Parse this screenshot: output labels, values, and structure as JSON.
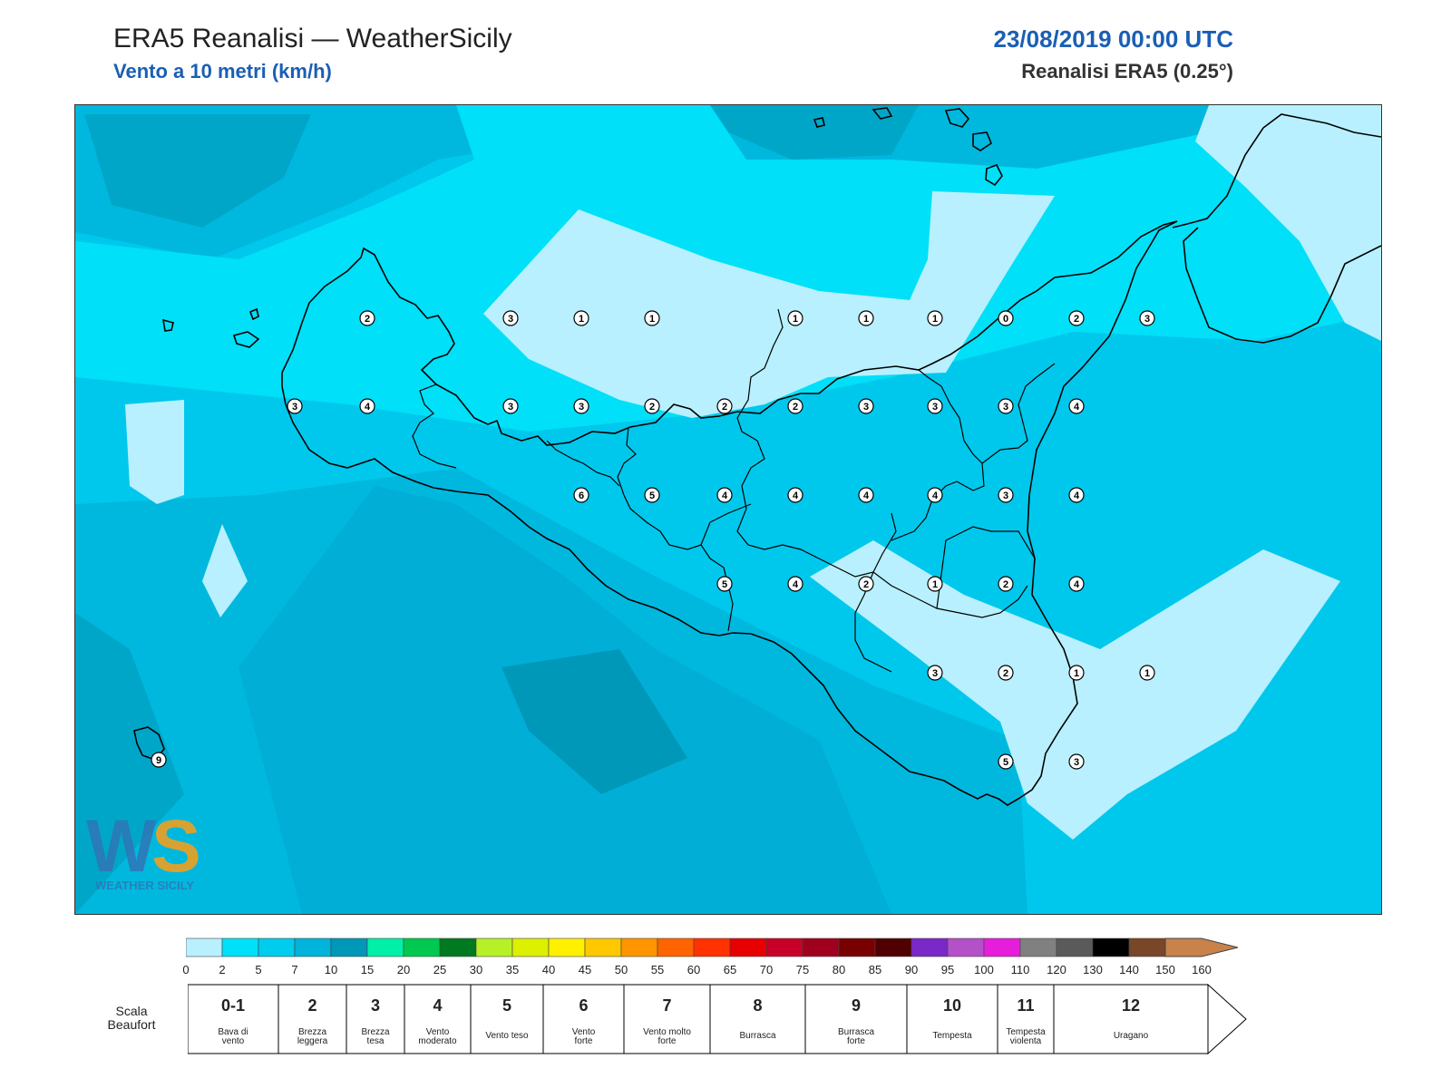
{
  "header": {
    "title": "ERA5 Reanalisi — WeatherSicily",
    "subtitle": "Vento a 10 metri (km/h)",
    "datetime": "23/08/2019 00:00 UTC",
    "source": "Reanalisi ERA5 (0.25°)"
  },
  "colorbar": {
    "ticks": [
      "0",
      "2",
      "5",
      "7",
      "10",
      "15",
      "20",
      "25",
      "30",
      "35",
      "40",
      "45",
      "50",
      "55",
      "60",
      "65",
      "70",
      "75",
      "80",
      "85",
      "90",
      "95",
      "100",
      "110",
      "120",
      "130",
      "140",
      "150",
      "160"
    ],
    "colors": [
      "#b8f0ff",
      "#00e0f8",
      "#00ccee",
      "#00b4dc",
      "#0098b8",
      "#00f0a8",
      "#00c850",
      "#007a20",
      "#b8f028",
      "#dcf000",
      "#fff000",
      "#ffc800",
      "#ff9600",
      "#ff6400",
      "#ff3200",
      "#e60000",
      "#c80028",
      "#a0001e",
      "#780000",
      "#500000",
      "#7a28c8",
      "#b450c8",
      "#e61edc",
      "#808080",
      "#5a5a5a",
      "#000000",
      "#7a4628",
      "#c8824a"
    ]
  },
  "beaufort": {
    "title": "Scala Beaufort",
    "cells": [
      {
        "num": "0-1",
        "desc": [
          "Bava di",
          "vento"
        ]
      },
      {
        "num": "2",
        "desc": [
          "Brezza",
          "leggera"
        ]
      },
      {
        "num": "3",
        "desc": [
          "Brezza",
          "tesa"
        ]
      },
      {
        "num": "4",
        "desc": [
          "Vento",
          "moderato"
        ]
      },
      {
        "num": "5",
        "desc": [
          "Vento teso"
        ]
      },
      {
        "num": "6",
        "desc": [
          "Vento",
          "forte"
        ]
      },
      {
        "num": "7",
        "desc": [
          "Vento molto",
          "forte"
        ]
      },
      {
        "num": "8",
        "desc": [
          "Burrasca"
        ]
      },
      {
        "num": "9",
        "desc": [
          "Burrasca",
          "forte"
        ]
      },
      {
        "num": "10",
        "desc": [
          "Tempesta"
        ]
      },
      {
        "num": "11",
        "desc": [
          "Tempesta",
          "violenta"
        ]
      },
      {
        "num": "12",
        "desc": [
          "Uragano"
        ]
      }
    ]
  },
  "map": {
    "station_values": [
      [
        2,
        3,
        1,
        1,
        1,
        1,
        1,
        0,
        2,
        3
      ],
      [
        3,
        4,
        3,
        3,
        2,
        2,
        2,
        3,
        3,
        3,
        4
      ],
      [
        6,
        5,
        4,
        4,
        4,
        4,
        3,
        4
      ],
      [
        5,
        4,
        2,
        1,
        2,
        4
      ],
      [
        3,
        2,
        1,
        1
      ],
      [
        5,
        3
      ],
      [
        9
      ]
    ]
  },
  "logo": {
    "letters": "WS",
    "text": "WEATHER SICILY"
  }
}
